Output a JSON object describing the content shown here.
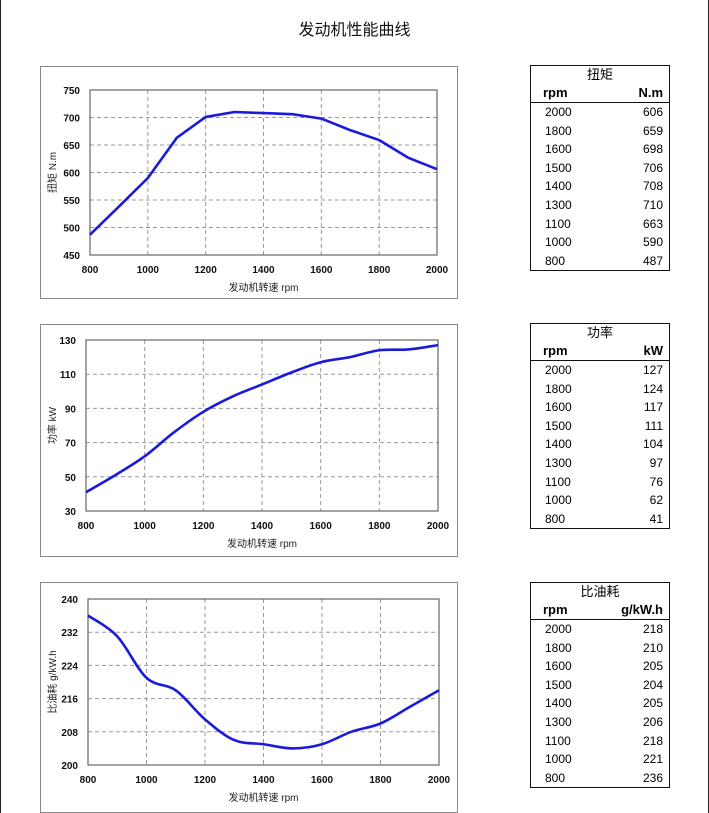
{
  "title": "发动机性能曲线",
  "tables": [
    {
      "title": "扭矩",
      "col1": "rpm",
      "col2": "N.m",
      "rows": [
        [
          "2000",
          "606"
        ],
        [
          "1800",
          "659"
        ],
        [
          "1600",
          "698"
        ],
        [
          "1500",
          "706"
        ],
        [
          "1400",
          "708"
        ],
        [
          "1300",
          "710"
        ],
        [
          "1100",
          "663"
        ],
        [
          "1000",
          "590"
        ],
        [
          "800",
          "487"
        ]
      ]
    },
    {
      "title": "功率",
      "col1": "rpm",
      "col2": "kW",
      "rows": [
        [
          "2000",
          "127"
        ],
        [
          "1800",
          "124"
        ],
        [
          "1600",
          "117"
        ],
        [
          "1500",
          "111"
        ],
        [
          "1400",
          "104"
        ],
        [
          "1300",
          "97"
        ],
        [
          "1100",
          "76"
        ],
        [
          "1000",
          "62"
        ],
        [
          "800",
          "41"
        ]
      ]
    },
    {
      "title": "比油耗",
      "col1": "rpm",
      "col2": "g/kW.h",
      "rows": [
        [
          "2000",
          "218"
        ],
        [
          "1800",
          "210"
        ],
        [
          "1600",
          "205"
        ],
        [
          "1500",
          "204"
        ],
        [
          "1400",
          "205"
        ],
        [
          "1300",
          "206"
        ],
        [
          "1100",
          "218"
        ],
        [
          "1000",
          "221"
        ],
        [
          "800",
          "236"
        ]
      ]
    }
  ],
  "chart_data": [
    {
      "type": "line",
      "title": "",
      "xlabel": "发动机转速  rpm",
      "ylabel": "扭矩 N.m",
      "xlim": [
        800,
        2000
      ],
      "ylim": [
        450,
        750
      ],
      "xticks": [
        800,
        1000,
        1200,
        1400,
        1600,
        1800,
        2000
      ],
      "yticks": [
        450,
        500,
        550,
        600,
        650,
        700,
        750
      ],
      "grid": true,
      "color": "#1a1adb",
      "smooth": false,
      "x": [
        800,
        900,
        1000,
        1100,
        1200,
        1300,
        1400,
        1500,
        1600,
        1700,
        1800,
        1900,
        2000
      ],
      "y": [
        487,
        538,
        590,
        663,
        701,
        710,
        708,
        706,
        698,
        677,
        659,
        627,
        606
      ]
    },
    {
      "type": "line",
      "title": "",
      "xlabel": "发动机转速 rpm",
      "ylabel": "功率  kW",
      "xlim": [
        800,
        2000
      ],
      "ylim": [
        30,
        130
      ],
      "xticks": [
        800,
        1000,
        1200,
        1400,
        1600,
        1800,
        2000
      ],
      "yticks": [
        30,
        50,
        70,
        90,
        110,
        130
      ],
      "grid": true,
      "color": "#1a1adb",
      "smooth": true,
      "x": [
        800,
        900,
        1000,
        1100,
        1200,
        1300,
        1400,
        1500,
        1600,
        1700,
        1800,
        1900,
        2000
      ],
      "y": [
        41,
        51,
        62,
        76,
        88,
        97,
        104,
        111,
        117,
        120,
        124,
        124.5,
        127
      ]
    },
    {
      "type": "line",
      "title": "",
      "xlabel": "发动机转速  rpm",
      "ylabel": "比油耗  g/kW.h",
      "xlim": [
        800,
        2000
      ],
      "ylim": [
        200,
        240
      ],
      "xticks": [
        800,
        1000,
        1200,
        1400,
        1600,
        1800,
        2000
      ],
      "yticks": [
        200,
        208,
        216,
        224,
        232,
        240
      ],
      "grid": true,
      "color": "#1a1adb",
      "smooth": true,
      "x": [
        800,
        900,
        1000,
        1100,
        1200,
        1300,
        1400,
        1500,
        1600,
        1700,
        1800,
        1900,
        2000
      ],
      "y": [
        236,
        231,
        221,
        218,
        211,
        206,
        205,
        204,
        205,
        208,
        210,
        214,
        218
      ]
    }
  ]
}
